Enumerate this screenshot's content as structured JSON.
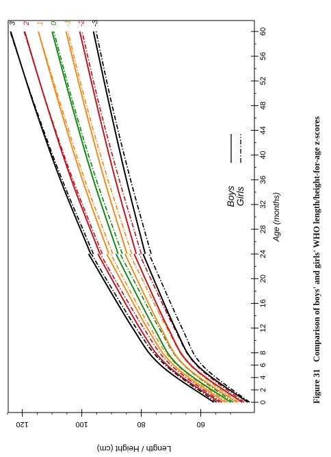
{
  "caption": {
    "label": "Figure 31",
    "text": "Comparison of boys' and girls' WHO length/height-for-age z-scores"
  },
  "chart_data": {
    "type": "line",
    "title": "",
    "xlabel": "Age (months)",
    "ylabel": "Length / Height (cm)",
    "xlim": [
      0,
      60
    ],
    "ylim": [
      40,
      126
    ],
    "x_ticks": [
      0,
      2,
      4,
      6,
      8,
      12,
      16,
      20,
      24,
      28,
      32,
      36,
      40,
      44,
      48,
      52,
      56,
      60
    ],
    "y_ticks": [
      60,
      80,
      100,
      120
    ],
    "legend": {
      "position": "center-right",
      "entries": [
        {
          "label": "Boys",
          "style": "solid"
        },
        {
          "label": "Girls",
          "style": "dash-dot"
        }
      ]
    },
    "z_labels": [
      "3",
      "2",
      "1",
      "0",
      "-1",
      "-2",
      "-3"
    ],
    "colors": {
      "3": "#000000",
      "2": "#c0151c",
      "1": "#f08c1e",
      "0": "#128a12",
      "-1": "#f08c1e",
      "-2": "#c0151c",
      "-3": "#000000"
    },
    "x": [
      0,
      6,
      12,
      24,
      36,
      48,
      60
    ],
    "series": [
      {
        "name": "Boys 3",
        "group": "boys",
        "z": "3",
        "values": [
          55.6,
          73.5,
          82.9,
          97.0,
          107.2,
          116.0,
          123.9
        ]
      },
      {
        "name": "Boys 2",
        "group": "boys",
        "z": "2",
        "values": [
          53.7,
          71.3,
          80.5,
          93.9,
          103.5,
          111.7,
          119.2
        ]
      },
      {
        "name": "Boys 1",
        "group": "boys",
        "z": "1",
        "values": [
          51.8,
          69.1,
          78.0,
          90.9,
          99.8,
          107.5,
          114.6
        ]
      },
      {
        "name": "Boys 0",
        "group": "boys",
        "z": "0",
        "values": [
          49.9,
          67.6,
          75.7,
          87.8,
          96.1,
          103.3,
          110.0
        ]
      },
      {
        "name": "Boys -1",
        "group": "boys",
        "z": "-1",
        "values": [
          48.0,
          65.5,
          73.4,
          84.8,
          92.4,
          99.1,
          105.3
        ]
      },
      {
        "name": "Boys -2",
        "group": "boys",
        "z": "-2",
        "values": [
          46.1,
          63.3,
          71.0,
          81.7,
          88.7,
          94.9,
          100.7
        ]
      },
      {
        "name": "Boys -3",
        "group": "boys",
        "z": "-3",
        "values": [
          44.2,
          61.2,
          68.6,
          78.7,
          85.0,
          90.7,
          96.1
        ]
      },
      {
        "name": "Girls 3",
        "group": "girls",
        "z": "3",
        "values": [
          54.7,
          71.9,
          81.7,
          96.1,
          106.6,
          115.8,
          124.1
        ]
      },
      {
        "name": "Girls 2",
        "group": "girls",
        "z": "2",
        "values": [
          52.9,
          70.0,
          79.2,
          93.1,
          103.0,
          111.6,
          119.4
        ]
      },
      {
        "name": "Girls 1",
        "group": "girls",
        "z": "1",
        "values": [
          51.0,
          68.0,
          76.9,
          89.6,
          99.0,
          107.0,
          114.6
        ]
      },
      {
        "name": "Girls 0",
        "group": "girls",
        "z": "0",
        "values": [
          49.1,
          65.7,
          74.0,
          86.4,
          95.1,
          102.7,
          109.4
        ]
      },
      {
        "name": "Girls -1",
        "group": "girls",
        "z": "-1",
        "values": [
          47.3,
          63.6,
          71.4,
          83.2,
          91.2,
          98.4,
          104.7
        ]
      },
      {
        "name": "Girls -2",
        "group": "girls",
        "z": "-2",
        "values": [
          45.4,
          61.5,
          68.9,
          80.0,
          87.4,
          94.1,
          99.9
        ]
      },
      {
        "name": "Girls -3",
        "group": "girls",
        "z": "-3",
        "values": [
          43.6,
          59.5,
          66.3,
          76.7,
          83.6,
          89.8,
          95.2
        ]
      }
    ]
  }
}
